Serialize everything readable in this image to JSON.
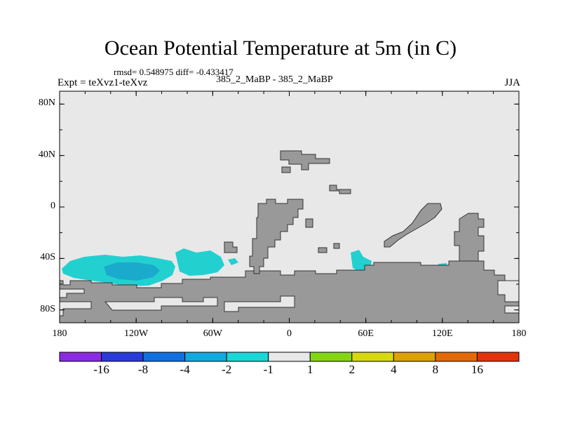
{
  "title": "Ocean Potential Temperature at 5m (in C)",
  "stats": "rmsd= 0.548975  diff= -0.433417",
  "experiment": "Expt = teXvz1-teXvz",
  "cases": "385_2_MaBP - 385_2_MaBP",
  "season": "JJA",
  "colors": {
    "background_ocean": "#e8e8e8",
    "land": "#999999",
    "land_outline": "#333333",
    "anomaly_light": "#22d0d0",
    "anomaly_dark": "#1aaacc"
  },
  "chart_data": {
    "type": "heatmap",
    "title": "Ocean Potential Temperature at 5m (in C)",
    "xlabel": "",
    "ylabel": "",
    "xlim": [
      -180,
      180
    ],
    "ylim": [
      -90,
      90
    ],
    "x_ticks": [
      {
        "value": -180,
        "label": "180"
      },
      {
        "value": -120,
        "label": "120W"
      },
      {
        "value": -60,
        "label": "60W"
      },
      {
        "value": 0,
        "label": "0"
      },
      {
        "value": 60,
        "label": "60E"
      },
      {
        "value": 120,
        "label": "120E"
      },
      {
        "value": 180,
        "label": "180"
      }
    ],
    "y_ticks": [
      {
        "value": 80,
        "label": "80N"
      },
      {
        "value": 40,
        "label": "40N"
      },
      {
        "value": 0,
        "label": "0"
      },
      {
        "value": -40,
        "label": "40S"
      },
      {
        "value": -80,
        "label": "80S"
      }
    ],
    "anomaly_regions": [
      {
        "name": "south-pacific-anomaly",
        "level": "-2 to -1",
        "lon_range": [
          -175,
          -90
        ],
        "lat_range": [
          -60,
          -35
        ]
      },
      {
        "name": "south-pacific-anomaly-core",
        "level": "-4 to -2",
        "lon_range": [
          -145,
          -100
        ],
        "lat_range": [
          -55,
          -43
        ]
      },
      {
        "name": "south-atlantic-anomaly",
        "level": "-2 to -1",
        "lon_range": [
          -88,
          -50
        ],
        "lat_range": [
          -53,
          -33
        ]
      },
      {
        "name": "south-indian-anomaly",
        "level": "-2 to -1",
        "lon_range": [
          50,
          62
        ],
        "lat_range": [
          -50,
          -35
        ]
      }
    ],
    "colorbar": {
      "colors": [
        "#8a2be2",
        "#2a3ad8",
        "#1170e0",
        "#14a8e0",
        "#1ad6d6",
        "#e8e8e8",
        "#84d514",
        "#d8d812",
        "#dca20a",
        "#e26a0a",
        "#e2340a"
      ],
      "labels": [
        "-16",
        "-8",
        "-4",
        "-2",
        "-1",
        "1",
        "2",
        "4",
        "8",
        "16"
      ]
    }
  }
}
